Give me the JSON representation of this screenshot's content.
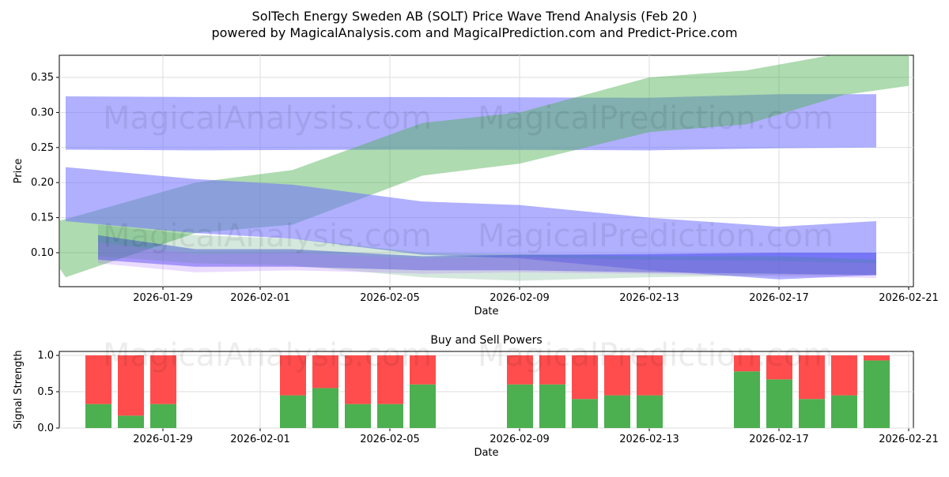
{
  "title": "SolTech Energy Sweden AB (SOLT) Price Wave Trend Analysis (Feb 20 )",
  "subtitle": "powered by MagicalAnalysis.com and MagicalPrediction.com and Predict-Price.com",
  "watermarks": [
    "MagicalAnalysis.com",
    "MagicalPrediction.com"
  ],
  "chart_data": [
    {
      "type": "area",
      "title": "",
      "xlabel": "Date",
      "ylabel": "Price",
      "ylim": [
        0.053,
        0.385
      ],
      "xticks": [
        "2026-01-29",
        "2026-02-01",
        "2026-02-05",
        "2026-02-09",
        "2026-02-13",
        "2026-02-17",
        "2026-02-21"
      ],
      "yticks": [
        0.1,
        0.15,
        0.2,
        0.25,
        0.3,
        0.35
      ],
      "grid": true,
      "bands": [
        {
          "name": "blue-flat-band",
          "color": "#6f6fff",
          "opacity": 0.55,
          "x": [
            "2026-01-26",
            "2026-01-30",
            "2026-02-06",
            "2026-02-13",
            "2026-02-17",
            "2026-02-20"
          ],
          "upper": [
            0.323,
            0.322,
            0.322,
            0.321,
            0.326,
            0.326
          ],
          "lower": [
            0.247,
            0.246,
            0.247,
            0.246,
            0.249,
            0.25
          ]
        },
        {
          "name": "green-band",
          "color": "#4caf50",
          "opacity": 0.45,
          "x": [
            "2026-01-25",
            "2026-01-26",
            "2026-01-30",
            "2026-02-02",
            "2026-02-06",
            "2026-02-09",
            "2026-02-13",
            "2026-02-16",
            "2026-02-19",
            "2026-02-21"
          ],
          "upper": [
            0.135,
            0.148,
            0.2,
            0.218,
            0.285,
            0.3,
            0.35,
            0.36,
            0.385,
            0.385
          ],
          "lower": [
            0.135,
            0.065,
            0.128,
            0.14,
            0.21,
            0.227,
            0.272,
            0.283,
            0.325,
            0.338
          ]
        },
        {
          "name": "blue-diagonal-band",
          "color": "#6f6fff",
          "opacity": 0.55,
          "x": [
            "2026-01-26",
            "2026-01-30",
            "2026-02-02",
            "2026-02-06",
            "2026-02-09",
            "2026-02-13",
            "2026-02-17",
            "2026-02-20"
          ],
          "upper": [
            0.222,
            0.205,
            0.197,
            0.173,
            0.168,
            0.15,
            0.137,
            0.145
          ],
          "lower": [
            0.145,
            0.128,
            0.12,
            0.097,
            0.092,
            0.075,
            0.062,
            0.068
          ]
        },
        {
          "name": "dark-blue-band",
          "color": "#3030ee",
          "opacity": 0.45,
          "x": [
            "2026-01-27",
            "2026-01-30",
            "2026-02-02",
            "2026-02-06",
            "2026-02-09",
            "2026-02-13",
            "2026-02-17",
            "2026-02-20"
          ],
          "upper": [
            0.125,
            0.105,
            0.105,
            0.095,
            0.097,
            0.098,
            0.1,
            0.1
          ],
          "lower": [
            0.09,
            0.08,
            0.08,
            0.075,
            0.075,
            0.072,
            0.07,
            0.068
          ]
        },
        {
          "name": "teal-band",
          "color": "#2e8b57",
          "opacity": 0.2,
          "x": [
            "2026-01-27",
            "2026-01-30",
            "2026-02-02",
            "2026-02-06",
            "2026-02-09",
            "2026-02-13",
            "2026-02-17",
            "2026-02-20"
          ],
          "upper": [
            0.14,
            0.125,
            0.12,
            0.1,
            0.098,
            0.095,
            0.095,
            0.09
          ],
          "lower": [
            0.095,
            0.085,
            0.082,
            0.065,
            0.06,
            0.065,
            0.068,
            0.068
          ]
        },
        {
          "name": "violet-band",
          "color": "#b070ff",
          "opacity": 0.25,
          "x": [
            "2026-01-27",
            "2026-01-30",
            "2026-02-02",
            "2026-02-06",
            "2026-02-09",
            "2026-02-13",
            "2026-02-17",
            "2026-02-20"
          ],
          "upper": [
            0.115,
            0.098,
            0.1,
            0.092,
            0.094,
            0.09,
            0.088,
            0.085
          ],
          "lower": [
            0.085,
            0.072,
            0.075,
            0.07,
            0.072,
            0.07,
            0.066,
            0.064
          ]
        }
      ]
    },
    {
      "type": "bar",
      "title": "Buy and Sell Powers",
      "xlabel": "Date",
      "ylabel": "Signal Strength",
      "ylim": [
        0,
        1.05
      ],
      "yticks": [
        0.0,
        0.5,
        1.0
      ],
      "xticks": [
        "2026-01-29",
        "2026-02-01",
        "2026-02-05",
        "2026-02-09",
        "2026-02-13",
        "2026-02-17",
        "2026-02-21"
      ],
      "categories": [
        "2026-01-27",
        "2026-01-28",
        "2026-01-29",
        "2026-02-02",
        "2026-02-03",
        "2026-02-04",
        "2026-02-05",
        "2026-02-06",
        "2026-02-09",
        "2026-02-10",
        "2026-02-11",
        "2026-02-12",
        "2026-02-13",
        "2026-02-16",
        "2026-02-17",
        "2026-02-18",
        "2026-02-19",
        "2026-02-20"
      ],
      "series": [
        {
          "name": "Buy",
          "color": "#4caf50",
          "values": [
            0.33,
            0.17,
            0.33,
            0.45,
            0.55,
            0.33,
            0.33,
            0.6,
            0.6,
            0.6,
            0.4,
            0.45,
            0.45,
            0.78,
            0.67,
            0.4,
            0.45,
            0.93
          ]
        },
        {
          "name": "Sell",
          "color": "#ff4d4d",
          "values": [
            0.67,
            0.83,
            0.67,
            0.55,
            0.45,
            0.67,
            0.67,
            0.4,
            0.4,
            0.4,
            0.6,
            0.55,
            0.55,
            0.22,
            0.33,
            0.6,
            0.55,
            0.07
          ]
        }
      ]
    }
  ]
}
